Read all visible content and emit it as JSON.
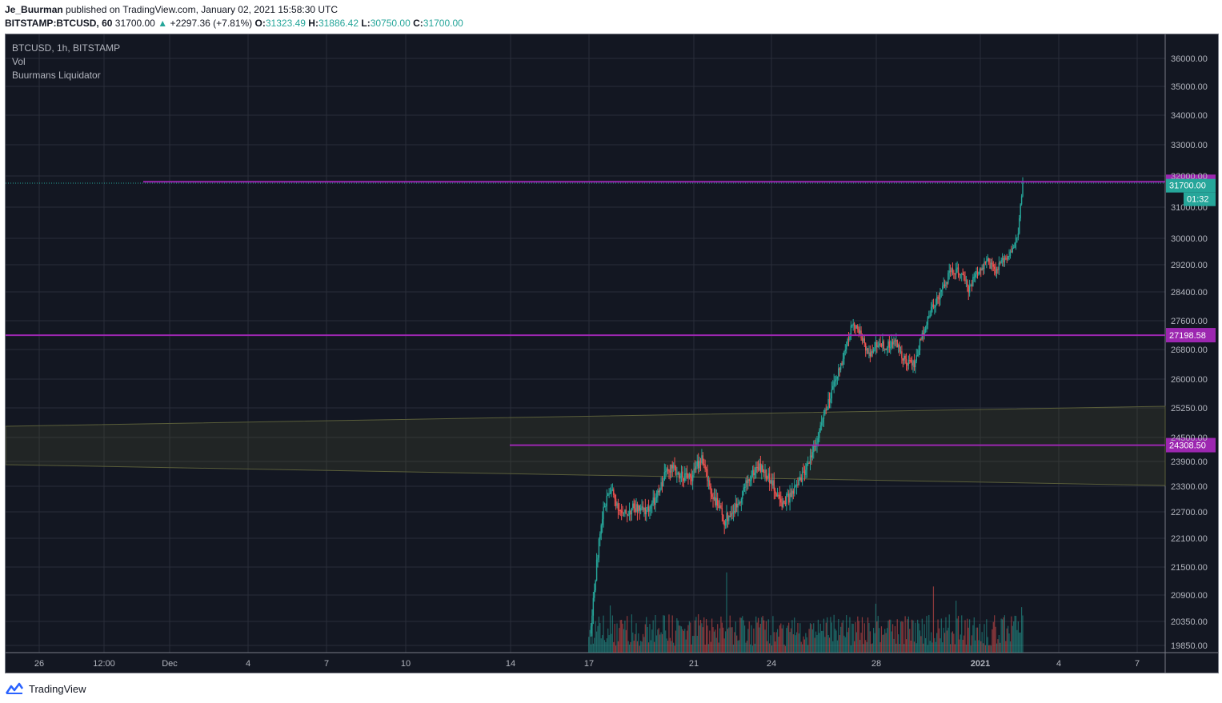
{
  "header": {
    "author": "Je_Buurman",
    "published": "published on TradingView.com, January 02, 2021 15:58:30 UTC",
    "symbol": "BITSTAMP:BTCUSD, 60",
    "last": "31700.00",
    "change": "+2297.36 (+7.81%)",
    "open_label": "O:",
    "open": "31323.49",
    "high_label": "H:",
    "high": "31886.42",
    "low_label": "L:",
    "low": "30750.00",
    "close_label": "C:",
    "close": "31700.00"
  },
  "legend": [
    "BTCUSD, 1h, BITSTAMP",
    "Vol",
    "Buurmans Liquidator"
  ],
  "footer": {
    "brand": "TradingView"
  },
  "colors": {
    "bg": "#131722",
    "grid": "#2a2e39",
    "up": "#26a69a",
    "down": "#ef5350",
    "level": "#9c27b0",
    "band": "#4a4e31"
  },
  "chart_data": {
    "type": "candlestick",
    "y_ticks": [
      36000,
      35000,
      34000,
      33000,
      32000,
      31000,
      30000,
      29200,
      28400,
      27600,
      26800,
      26000,
      25250,
      24500,
      23900,
      23300,
      22700,
      22100,
      21500,
      20900,
      20350,
      19850
    ],
    "y_tick_labels": [
      "36000.00",
      "35000.00",
      "34000.00",
      "33000.00",
      "32000.00",
      "31000.00",
      "30000.00",
      "29200.00",
      "28400.00",
      "27600.00",
      "26800.00",
      "26000.00",
      "25250.00",
      "24500.00",
      "23900.00",
      "23300.00",
      "22700.00",
      "22100.00",
      "21500.00",
      "20900.00",
      "20350.00",
      "19850.00"
    ],
    "x_ticks": [
      "26",
      "12:00",
      "Dec",
      "4",
      "7",
      "10",
      "14",
      "17",
      "21",
      "24",
      "28",
      "2021",
      "4",
      "7"
    ],
    "levels": [
      {
        "label": "31812.79",
        "value": 31812.79
      },
      {
        "label": "27198.58",
        "value": 27198.58
      },
      {
        "label": "24308.50",
        "value": 24308.5
      }
    ],
    "current_price": {
      "label": "31700.00",
      "value": 31700.0
    },
    "countdown": "01:32",
    "price_path": [
      {
        "t": 0,
        "p": 17400
      },
      {
        "t": 210,
        "p": 17800
      },
      {
        "t": 250,
        "p": 18100
      },
      {
        "t": 255,
        "p": 18400
      },
      {
        "t": 257,
        "p": 19200
      },
      {
        "t": 259,
        "p": 20300
      },
      {
        "t": 262,
        "p": 21800
      },
      {
        "t": 265,
        "p": 22900
      },
      {
        "t": 268,
        "p": 23200
      },
      {
        "t": 273,
        "p": 22600
      },
      {
        "t": 278,
        "p": 22800
      },
      {
        "t": 283,
        "p": 22700
      },
      {
        "t": 288,
        "p": 23000
      },
      {
        "t": 293,
        "p": 23800
      },
      {
        "t": 298,
        "p": 23600
      },
      {
        "t": 303,
        "p": 23500
      },
      {
        "t": 308,
        "p": 24000
      },
      {
        "t": 312,
        "p": 23200
      },
      {
        "t": 318,
        "p": 22500
      },
      {
        "t": 323,
        "p": 22800
      },
      {
        "t": 328,
        "p": 23400
      },
      {
        "t": 333,
        "p": 23800
      },
      {
        "t": 338,
        "p": 23500
      },
      {
        "t": 343,
        "p": 22900
      },
      {
        "t": 348,
        "p": 23100
      },
      {
        "t": 353,
        "p": 23600
      },
      {
        "t": 358,
        "p": 24300
      },
      {
        "t": 363,
        "p": 25200
      },
      {
        "t": 367,
        "p": 25900
      },
      {
        "t": 372,
        "p": 26900
      },
      {
        "t": 375,
        "p": 27600
      },
      {
        "t": 378,
        "p": 27200
      },
      {
        "t": 382,
        "p": 26700
      },
      {
        "t": 386,
        "p": 27000
      },
      {
        "t": 390,
        "p": 26900
      },
      {
        "t": 394,
        "p": 27000
      },
      {
        "t": 398,
        "p": 26500
      },
      {
        "t": 402,
        "p": 26400
      },
      {
        "t": 406,
        "p": 27300
      },
      {
        "t": 410,
        "p": 28000
      },
      {
        "t": 414,
        "p": 28400
      },
      {
        "t": 418,
        "p": 29000
      },
      {
        "t": 422,
        "p": 29000
      },
      {
        "t": 426,
        "p": 28500
      },
      {
        "t": 430,
        "p": 29000
      },
      {
        "t": 434,
        "p": 29300
      },
      {
        "t": 438,
        "p": 29000
      },
      {
        "t": 442,
        "p": 29400
      },
      {
        "t": 446,
        "p": 29700
      },
      {
        "t": 448,
        "p": 30200
      },
      {
        "t": 449,
        "p": 31000
      },
      {
        "t": 450,
        "p": 31700
      }
    ]
  }
}
